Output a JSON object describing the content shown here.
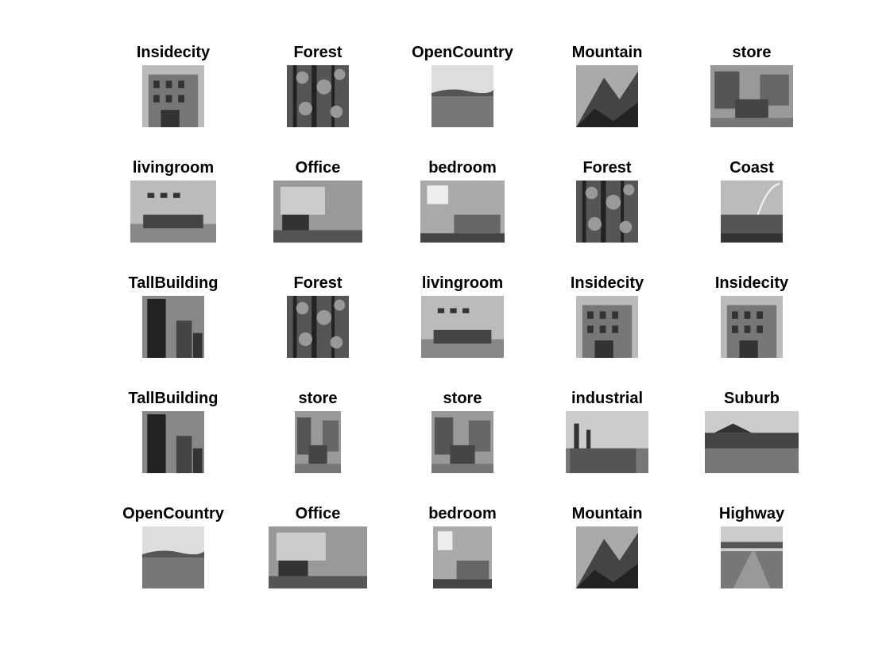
{
  "figure": {
    "images": [
      {
        "label": "Insidecity",
        "scene": "city"
      },
      {
        "label": "Forest",
        "scene": "forest"
      },
      {
        "label": "OpenCountry",
        "scene": "country"
      },
      {
        "label": "Mountain",
        "scene": "mountain"
      },
      {
        "label": "store",
        "scene": "store"
      },
      {
        "label": "livingroom",
        "scene": "room"
      },
      {
        "label": "Office",
        "scene": "office"
      },
      {
        "label": "bedroom",
        "scene": "bedroom"
      },
      {
        "label": "Forest",
        "scene": "forest"
      },
      {
        "label": "Coast",
        "scene": "coast"
      },
      {
        "label": "TallBuilding",
        "scene": "tall"
      },
      {
        "label": "Forest",
        "scene": "forest"
      },
      {
        "label": "livingroom",
        "scene": "room"
      },
      {
        "label": "Insidecity",
        "scene": "city"
      },
      {
        "label": "Insidecity",
        "scene": "city"
      },
      {
        "label": "TallBuilding",
        "scene": "tall"
      },
      {
        "label": "store",
        "scene": "store"
      },
      {
        "label": "store",
        "scene": "store"
      },
      {
        "label": "industrial",
        "scene": "industrial"
      },
      {
        "label": "Suburb",
        "scene": "suburb"
      },
      {
        "label": "OpenCountry",
        "scene": "country"
      },
      {
        "label": "Office",
        "scene": "office"
      },
      {
        "label": "bedroom",
        "scene": "bedroom"
      },
      {
        "label": "Mountain",
        "scene": "mountain"
      },
      {
        "label": "Highway",
        "scene": "highway"
      }
    ]
  }
}
